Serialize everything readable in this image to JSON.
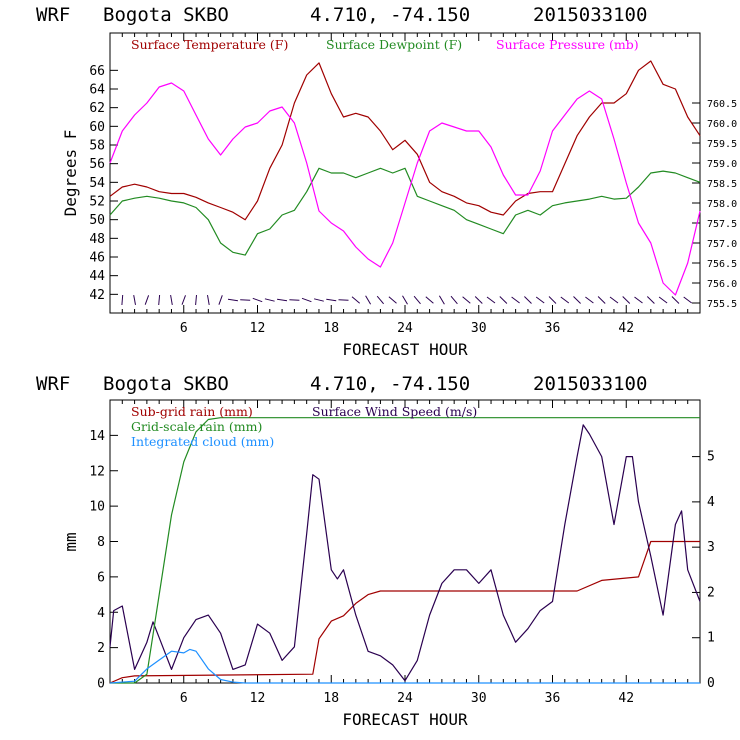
{
  "chart_data": [
    {
      "type": "line",
      "header": {
        "model": "WRF",
        "station": "Bogota SKBO",
        "coords": "4.710, -74.150",
        "init": "2015033100"
      },
      "xlabel": "FORECAST HOUR",
      "ylabel": "Degrees F",
      "xlim": [
        0,
        48
      ],
      "xticks": [
        6,
        12,
        18,
        24,
        30,
        36,
        42
      ],
      "ylim": [
        40,
        70
      ],
      "yticks": [
        42,
        44,
        46,
        48,
        50,
        52,
        54,
        56,
        58,
        60,
        62,
        64,
        66
      ],
      "y2lim": [
        755.25,
        762.25
      ],
      "y2ticks": [
        "755.5",
        "756.0",
        "756.5",
        "757.0",
        "757.5",
        "758.0",
        "758.5",
        "759.0",
        "759.5",
        "760.0",
        "760.5"
      ],
      "series": [
        {
          "name": "Surface Temperature (F)",
          "color": "#a00000",
          "axis": "left",
          "x": [
            0,
            1,
            2,
            3,
            4,
            5,
            6,
            7,
            8,
            9,
            10,
            11,
            12,
            13,
            14,
            15,
            16,
            17,
            18,
            19,
            20,
            21,
            22,
            23,
            23.5,
            24,
            25,
            26,
            27,
            28,
            29,
            30,
            31,
            32,
            33,
            34,
            35,
            36,
            37,
            38,
            39,
            40,
            41,
            42,
            43,
            44,
            45,
            46,
            47,
            48
          ],
          "values": [
            52.5,
            53.5,
            53.8,
            53.5,
            53,
            52.8,
            52.8,
            52.4,
            51.8,
            51.3,
            50.8,
            50,
            52,
            55.5,
            58,
            62.5,
            65.5,
            66.8,
            63.5,
            61,
            61.4,
            61,
            59.5,
            57.5,
            58,
            58.5,
            57,
            54,
            53,
            52.5,
            51.8,
            51.5,
            50.8,
            50.5,
            52,
            52.8,
            53,
            53,
            56,
            59,
            61,
            62.5,
            62.5,
            63.5,
            66,
            67,
            64.5,
            64,
            61,
            59
          ]
        },
        {
          "name": "Surface Dewpoint (F)",
          "color": "#228b22",
          "axis": "left",
          "x": [
            0,
            1,
            2,
            3,
            4,
            5,
            6,
            7,
            8,
            9,
            10,
            11,
            12,
            13,
            14,
            15,
            16,
            17,
            18,
            19,
            20,
            21,
            22,
            23,
            24,
            25,
            26,
            27,
            28,
            29,
            30,
            31,
            32,
            33,
            34,
            35,
            36,
            37,
            38,
            39,
            40,
            41,
            42,
            43,
            44,
            45,
            46,
            47,
            48
          ],
          "values": [
            50.5,
            52,
            52.3,
            52.5,
            52.3,
            52,
            51.8,
            51.3,
            50,
            47.5,
            46.5,
            46.2,
            48.5,
            49,
            50.5,
            51,
            53,
            55.5,
            55,
            55,
            54.5,
            55,
            55.5,
            55,
            55.5,
            52.5,
            52,
            51.5,
            51,
            50,
            49.5,
            49,
            48.5,
            50.5,
            51,
            50.5,
            51.5,
            51.8,
            52,
            52.2,
            52.5,
            52.2,
            52.3,
            53.5,
            55,
            55.2,
            55,
            54.5,
            54
          ]
        },
        {
          "name": "Surface Pressure (mb)",
          "color": "#ff00ff",
          "axis": "right",
          "x": [
            0,
            1,
            2,
            3,
            4,
            5,
            6,
            7,
            8,
            9,
            10,
            11,
            12,
            13,
            14,
            15,
            16,
            17,
            18,
            19,
            20,
            21,
            22,
            23,
            24,
            25,
            26,
            27,
            28,
            29,
            30,
            31,
            32,
            33,
            34,
            35,
            36,
            37,
            38,
            39,
            40,
            41,
            42,
            43,
            44,
            45,
            46,
            47,
            48
          ],
          "values": [
            759,
            759.8,
            760.2,
            760.5,
            760.9,
            761,
            760.8,
            760.2,
            759.6,
            759.2,
            759.6,
            759.9,
            760.0,
            760.3,
            760.4,
            760.0,
            759,
            757.8,
            757.5,
            757.3,
            756.9,
            756.6,
            756.4,
            757,
            758,
            759,
            759.8,
            760.0,
            759.9,
            759.8,
            759.8,
            759.4,
            758.7,
            758.2,
            758.2,
            758.8,
            759.8,
            760.2,
            760.6,
            760.8,
            760.6,
            759.6,
            758.5,
            757.5,
            757,
            756,
            755.7,
            756.5,
            757.8
          ]
        }
      ],
      "legend": [
        "Surface Temperature (F)",
        "Surface Dewpoint (F)",
        "Surface Pressure (mb)"
      ],
      "wind_barbs": true
    },
    {
      "type": "line",
      "header": {
        "model": "WRF",
        "station": "Bogota SKBO",
        "coords": "4.710, -74.150",
        "init": "2015033100"
      },
      "xlabel": "FORECAST HOUR",
      "ylabel": "mm",
      "xlim": [
        0,
        48
      ],
      "xticks": [
        6,
        12,
        18,
        24,
        30,
        36,
        42
      ],
      "ylim": [
        0,
        16
      ],
      "yticks": [
        0,
        2,
        4,
        6,
        8,
        10,
        12,
        14
      ],
      "y2lim": [
        0,
        6.25
      ],
      "y2ticks": [
        "0",
        "1",
        "2",
        "3",
        "4",
        "5"
      ],
      "series": [
        {
          "name": "Sub-grid rain (mm)",
          "color": "#a00000",
          "axis": "left",
          "x": [
            0,
            1,
            2,
            16.5,
            17,
            18,
            19,
            20,
            21,
            22,
            23,
            36,
            38,
            40,
            43,
            44,
            48
          ],
          "values": [
            0,
            0.3,
            0.4,
            0.5,
            2.5,
            3.5,
            3.8,
            4.5,
            5.0,
            5.2,
            5.2,
            5.2,
            5.2,
            5.8,
            6.0,
            8.0,
            8.0
          ]
        },
        {
          "name": "Surface Wind Speed (m/s)",
          "color": "#2a0050",
          "axis": "right",
          "x": [
            0,
            0.3,
            1,
            2,
            3,
            3.5,
            4,
            5,
            6,
            7,
            8,
            9,
            10,
            11,
            12,
            13,
            14,
            15,
            16,
            16.5,
            17,
            18,
            18.5,
            19,
            20,
            21,
            22,
            23,
            24,
            25,
            26,
            27,
            28,
            29,
            30,
            31,
            32,
            33,
            34,
            35,
            36,
            37,
            38,
            38.5,
            39,
            40,
            41,
            42,
            42.5,
            43,
            44,
            45,
            46,
            46.5,
            47,
            48
          ],
          "values": [
            0.8,
            1.6,
            1.7,
            0.3,
            0.9,
            1.35,
            1.0,
            0.3,
            1.0,
            1.4,
            1.5,
            1.1,
            0.3,
            0.4,
            1.3,
            1.1,
            0.5,
            0.8,
            3.3,
            4.6,
            4.5,
            2.5,
            2.3,
            2.5,
            1.5,
            0.7,
            0.6,
            0.4,
            0.05,
            0.5,
            1.5,
            2.2,
            2.5,
            2.5,
            2.2,
            2.5,
            1.5,
            0.9,
            1.2,
            1.6,
            1.8,
            3.5,
            5.0,
            5.7,
            5.5,
            5.0,
            3.5,
            5.0,
            5.0,
            4.0,
            2.8,
            1.5,
            3.5,
            3.8,
            2.5,
            1.8
          ]
        },
        {
          "name": "Grid-scale rain (mm)",
          "color": "#228b22",
          "axis": "left",
          "x": [
            0,
            2,
            3,
            4,
            5,
            6,
            7,
            8,
            9,
            10,
            48
          ],
          "values": [
            0,
            0,
            0.5,
            5,
            9.5,
            12.5,
            14.2,
            14.9,
            15.0,
            15.0,
            15.0
          ]
        },
        {
          "name": "Integrated cloud (mm)",
          "color": "#1e90ff",
          "axis": "left",
          "x": [
            0,
            2,
            3,
            4,
            5,
            6,
            6.5,
            7,
            8,
            9,
            10,
            11,
            48
          ],
          "values": [
            0,
            0.1,
            0.8,
            1.3,
            1.8,
            1.7,
            1.9,
            1.8,
            0.8,
            0.2,
            0.05,
            0,
            0
          ]
        }
      ],
      "legend": [
        "Sub-grid rain (mm)",
        "Surface Wind Speed (m/s)",
        "Grid-scale rain (mm)",
        "Integrated cloud (mm)"
      ]
    }
  ]
}
